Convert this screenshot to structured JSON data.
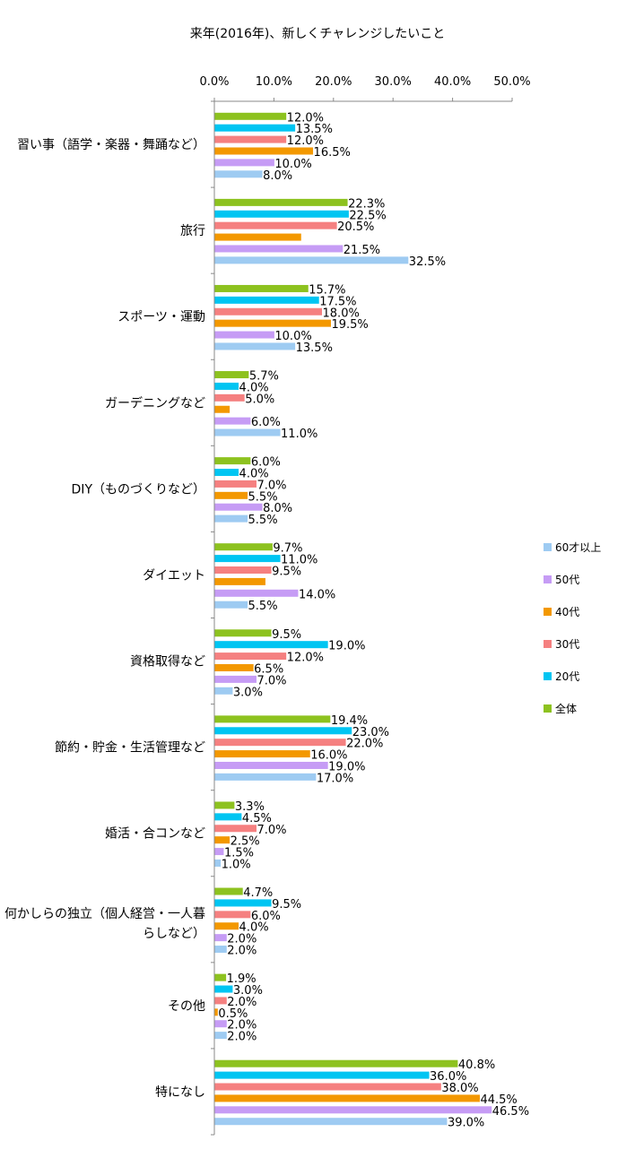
{
  "chart_data": {
    "type": "bar",
    "orientation": "horizontal",
    "title": "来年(2016年)、新しくチャレンジしたいこと",
    "xlim": [
      0,
      50
    ],
    "xticks": [
      "0.0%",
      "10.0%",
      "20.0%",
      "30.0%",
      "40.0%",
      "50.0%"
    ],
    "grid": false,
    "legend_position": "right",
    "categories": [
      "習い事（語学・楽器・舞踊など）",
      "旅行",
      "スポーツ・運動",
      "ガーデニングなど",
      "DIY（ものづくりなど）",
      "ダイエット",
      "資格取得など",
      "節約・貯金・生活管理など",
      "婚活・合コンなど",
      "何かしらの独立（個人経営・一人暮らしなど）",
      "その他",
      "特になし"
    ],
    "series": [
      {
        "name": "全体",
        "color": "#8DC21F",
        "values": [
          12.0,
          22.3,
          15.7,
          5.7,
          6.0,
          9.7,
          9.5,
          19.4,
          3.3,
          4.7,
          1.9,
          40.8
        ],
        "labels": [
          "12.0%",
          "22.3%",
          "15.7%",
          "5.7%",
          "6.0%",
          "9.7%",
          "9.5%",
          "19.4%",
          "3.3%",
          "4.7%",
          "1.9%",
          "40.8%"
        ]
      },
      {
        "name": "20代",
        "color": "#00C5F2",
        "values": [
          13.5,
          22.5,
          17.5,
          4.0,
          4.0,
          11.0,
          19.0,
          23.0,
          4.5,
          9.5,
          3.0,
          36.0
        ],
        "labels": [
          "13.5%",
          "22.5%",
          "17.5%",
          "4.0%",
          "4.0%",
          "11.0%",
          "19.0%",
          "23.0%",
          "4.5%",
          "9.5%",
          "3.0%",
          "36.0%"
        ]
      },
      {
        "name": "30代",
        "color": "#F58080",
        "values": [
          12.0,
          20.5,
          18.0,
          5.0,
          7.0,
          9.5,
          12.0,
          22.0,
          7.0,
          6.0,
          2.0,
          38.0
        ],
        "labels": [
          "12.0%",
          "20.5%",
          "18.0%",
          "5.0%",
          "7.0%",
          "9.5%",
          "12.0%",
          "22.0%",
          "7.0%",
          "6.0%",
          "2.0%",
          "38.0%"
        ]
      },
      {
        "name": "40代",
        "color": "#F39800",
        "values": [
          16.5,
          14.5,
          19.5,
          2.5,
          5.5,
          8.5,
          6.5,
          16.0,
          2.5,
          4.0,
          0.5,
          44.5
        ],
        "labels": [
          "16.5%",
          "",
          "19.5%",
          "",
          "5.5%",
          "",
          "6.5%",
          "16.0%",
          "2.5%",
          "4.0%",
          "0.5%",
          "44.5%"
        ]
      },
      {
        "name": "50代",
        "color": "#C69CF5",
        "values": [
          10.0,
          21.5,
          10.0,
          6.0,
          8.0,
          14.0,
          7.0,
          19.0,
          1.5,
          2.0,
          2.0,
          46.5
        ],
        "labels": [
          "10.0%",
          "21.5%",
          "10.0%",
          "6.0%",
          "8.0%",
          "14.0%",
          "7.0%",
          "19.0%",
          "1.5%",
          "2.0%",
          "2.0%",
          "46.5%"
        ]
      },
      {
        "name": "60才以上",
        "color": "#9ECBF2",
        "values": [
          8.0,
          32.5,
          13.5,
          11.0,
          5.5,
          5.5,
          3.0,
          17.0,
          1.0,
          2.0,
          2.0,
          39.0
        ],
        "labels": [
          "8.0%",
          "32.5%",
          "13.5%",
          "11.0%",
          "5.5%",
          "5.5%",
          "3.0%",
          "17.0%",
          "1.0%",
          "2.0%",
          "2.0%",
          "39.0%"
        ]
      }
    ],
    "legend_order": [
      "60才以上",
      "50代",
      "40代",
      "30代",
      "20代",
      "全体"
    ]
  }
}
